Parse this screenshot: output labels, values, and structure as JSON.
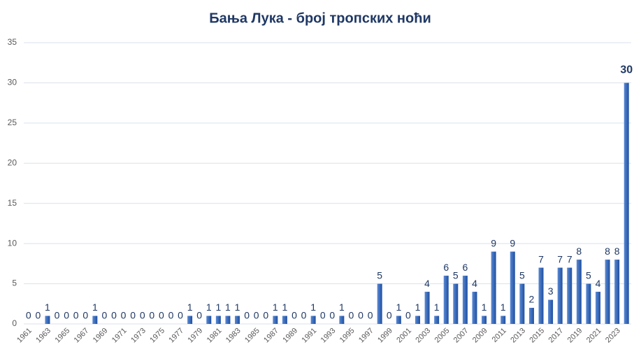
{
  "chart_data": {
    "type": "bar",
    "title": "Бања Лука - број тропских ноћи",
    "categories": [
      "1961",
      null,
      "1963",
      null,
      "1965",
      null,
      "1967",
      null,
      "1969",
      null,
      "1971",
      null,
      "1973",
      null,
      "1975",
      null,
      "1977",
      null,
      "1979",
      null,
      "1981",
      null,
      "1983",
      null,
      "1985",
      null,
      "1987",
      null,
      "1989",
      null,
      "1991",
      null,
      "1993",
      null,
      "1995",
      null,
      "1997",
      null,
      "1999",
      null,
      "2001",
      null,
      "2003",
      null,
      "2005",
      null,
      "2007",
      null,
      "2009",
      null,
      "2011",
      null,
      "2013",
      null,
      "2015",
      null,
      "2017",
      null,
      "2019",
      null,
      "2021",
      null,
      "2023",
      null
    ],
    "values": [
      0,
      0,
      1,
      0,
      0,
      0,
      0,
      1,
      0,
      0,
      0,
      0,
      0,
      0,
      0,
      0,
      0,
      1,
      0,
      1,
      1,
      1,
      1,
      0,
      0,
      0,
      1,
      1,
      0,
      0,
      1,
      0,
      0,
      1,
      0,
      0,
      0,
      5,
      0,
      1,
      0,
      1,
      4,
      1,
      6,
      5,
      6,
      4,
      1,
      9,
      1,
      9,
      5,
      2,
      7,
      3,
      7,
      7,
      8,
      5,
      4,
      8,
      8,
      30
    ],
    "color": "#2f67bd",
    "ylim": [
      0,
      35
    ],
    "yticks": [
      0,
      5,
      10,
      15,
      20,
      25,
      30,
      35
    ],
    "grid": true
  }
}
